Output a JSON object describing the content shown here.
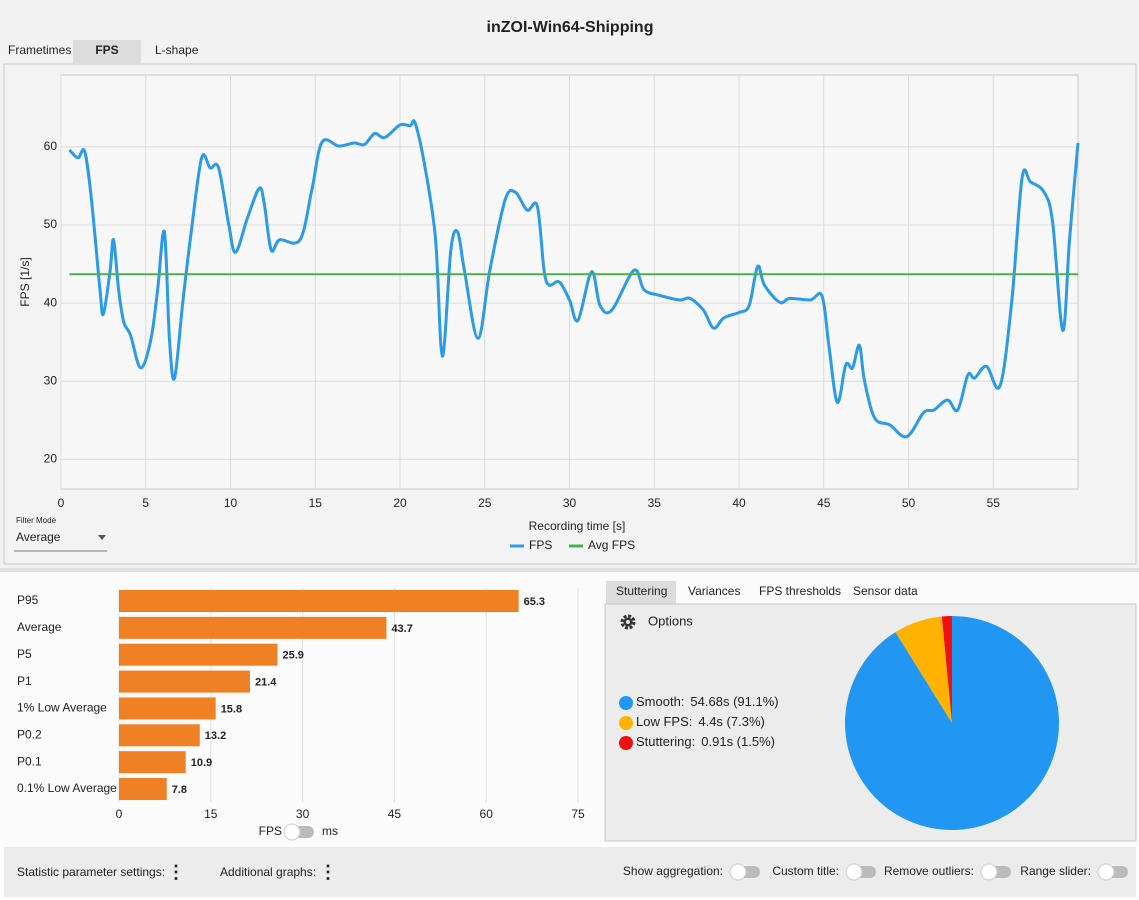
{
  "header": {
    "title": "inZOI-Win64-Shipping"
  },
  "tabs": [
    "Frametimes",
    "FPS",
    "L-shape"
  ],
  "filter": {
    "label": "Filter Mode",
    "value": "Average"
  },
  "chart_data": [
    {
      "type": "line",
      "xlabel": "Recording time [s]",
      "ylabel": "FPS [1/s]",
      "xlim": [
        0,
        60
      ],
      "xticks": [
        0,
        5,
        10,
        15,
        20,
        25,
        30,
        35,
        40,
        45,
        50,
        55
      ],
      "ylim": [
        16.2,
        69.2
      ],
      "yticks": [
        20,
        30,
        40,
        50,
        60
      ],
      "grid": true,
      "series": [
        {
          "name": "FPS",
          "color": "#2b9be8",
          "x": [
            0.5,
            1.0,
            1.4,
            1.8,
            2.3,
            2.5,
            2.9,
            3.1,
            3.4,
            3.7,
            4.1,
            4.7,
            5.3,
            5.7,
            6.1,
            6.4,
            6.7,
            7.2,
            7.7,
            8.3,
            8.8,
            9.3,
            9.9,
            10.3,
            11.0,
            11.7,
            12.0,
            12.4,
            12.9,
            14.1,
            14.8,
            15.4,
            16.4,
            17.3,
            17.9,
            18.5,
            19.1,
            20.0,
            20.6,
            20.9,
            21.5,
            22.1,
            22.5,
            23.0,
            23.4,
            23.8,
            24.6,
            25.3,
            26.2,
            26.8,
            27.5,
            28.1,
            28.5,
            28.8,
            29.4,
            30.0,
            30.5,
            31.3,
            31.8,
            32.5,
            33.8,
            34.4,
            35.3,
            36.5,
            37.1,
            37.9,
            38.5,
            39.1,
            40.0,
            40.6,
            41.1,
            41.5,
            42.4,
            43.0,
            44.2,
            44.9,
            45.3,
            45.8,
            46.3,
            46.7,
            47.1,
            47.4,
            48.0,
            48.9,
            49.9,
            50.9,
            51.5,
            52.3,
            52.9,
            53.5,
            53.9,
            54.6,
            55.4,
            56.1,
            56.7,
            57.2,
            58.0,
            58.5,
            59.1,
            59.5,
            60.0
          ],
          "values": [
            59.6,
            58.6,
            59.4,
            53.2,
            41.7,
            38.6,
            44.2,
            48.1,
            41.7,
            37.6,
            35.9,
            31.7,
            35.3,
            41.7,
            49.1,
            35.3,
            30.4,
            40.4,
            49.4,
            58.6,
            57.3,
            57.3,
            50.0,
            46.5,
            50.9,
            54.7,
            52.6,
            46.8,
            48.1,
            48.1,
            54.5,
            60.6,
            60.1,
            60.5,
            60.3,
            61.7,
            61.2,
            62.8,
            62.7,
            63.0,
            57.1,
            48.1,
            33.2,
            46.8,
            49.1,
            44.2,
            35.5,
            44.2,
            53.2,
            54.2,
            51.9,
            52.4,
            44.2,
            42.3,
            42.7,
            40.4,
            37.8,
            44.0,
            39.7,
            39.1,
            44.2,
            41.7,
            41.0,
            40.4,
            40.6,
            39.1,
            36.8,
            38.1,
            38.8,
            39.7,
            44.7,
            42.3,
            40.1,
            40.6,
            40.4,
            40.9,
            34.6,
            27.3,
            32.1,
            31.7,
            34.6,
            30.1,
            25.3,
            24.4,
            22.9,
            26.0,
            26.3,
            27.6,
            26.3,
            30.8,
            30.4,
            31.9,
            29.4,
            40.4,
            56.0,
            55.5,
            54.2,
            50.4,
            36.5,
            48.1,
            60.5
          ]
        },
        {
          "name": "Avg FPS",
          "color": "#4caf50",
          "x": [
            0.5,
            60
          ],
          "values": [
            43.7,
            43.7
          ]
        }
      ]
    },
    {
      "type": "bar",
      "orientation": "horizontal",
      "color": "#f08024",
      "categories": [
        "P95",
        "Average",
        "P5",
        "P1",
        "1% Low Average",
        "P0.2",
        "P0.1",
        "0.1% Low Average"
      ],
      "values": [
        65.3,
        43.7,
        25.9,
        21.4,
        15.8,
        13.2,
        10.9,
        7.8
      ],
      "xlim": [
        0,
        75
      ],
      "xticks": [
        0,
        15,
        30,
        45,
        60,
        75
      ],
      "grid": true
    },
    {
      "type": "pie",
      "categories": [
        "Smooth:",
        "Low FPS:",
        "Stuttering:"
      ],
      "values": [
        54.68,
        4.4,
        0.91
      ],
      "value_labels": [
        "54.68s (91.1%)",
        "4.4s (7.3%)",
        "0.91s (1.5%)"
      ],
      "colors": [
        "#2196f3",
        "#ffb300",
        "#f01010"
      ]
    }
  ],
  "unit_toggle": {
    "left": "FPS",
    "right": "ms"
  },
  "side_tabs": [
    "Stuttering",
    "Variances",
    "FPS thresholds",
    "Sensor data"
  ],
  "options": "Options",
  "footer": {
    "left": [
      "Statistic parameter settings:",
      "Additional graphs:"
    ],
    "right": [
      "Show aggregation:",
      "Custom title:",
      "Remove outliers:",
      "Range slider:"
    ]
  }
}
